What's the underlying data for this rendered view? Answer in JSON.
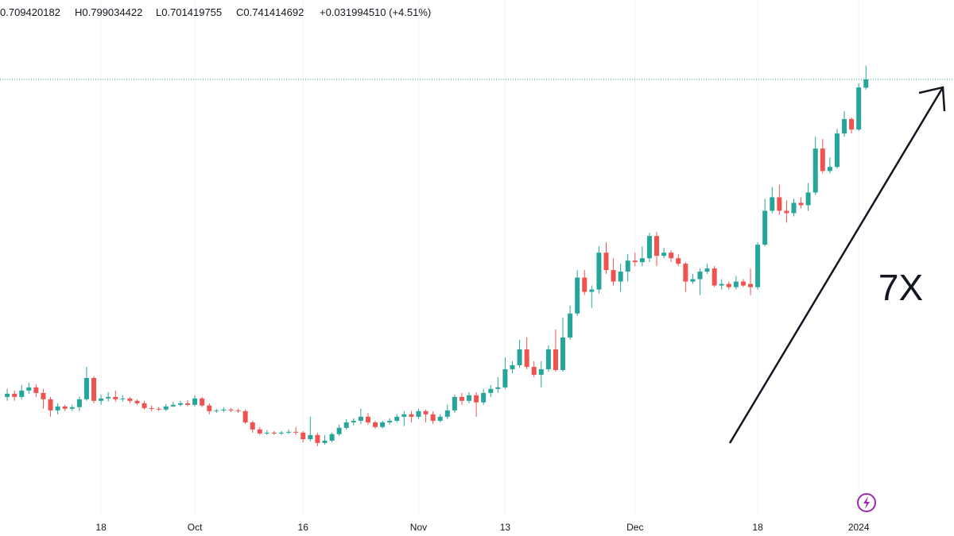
{
  "header": {
    "open": "0.709420182",
    "high": "H0.799034422",
    "low": "L0.701419755",
    "close": "C0.741414692",
    "change": "+0.031994510 (+4.51%)"
  },
  "chart_data": {
    "type": "candlestick",
    "log_scale": true,
    "up_color": "#26a69a",
    "down_color": "#ef5350",
    "price_line_color": "#26a69a",
    "annotation": "7X",
    "ylim": [
      0.0723,
      1.0
    ],
    "xlim": [
      -1,
      131.2
    ],
    "xticks": [
      {
        "value": 13,
        "label": "18"
      },
      {
        "value": 26,
        "label": "Oct"
      },
      {
        "value": 41,
        "label": "16"
      },
      {
        "value": 57,
        "label": "Nov"
      },
      {
        "value": 69,
        "label": "13"
      },
      {
        "value": 87,
        "label": "Dec"
      },
      {
        "value": 104,
        "label": "18"
      },
      {
        "value": 118,
        "label": "2024"
      }
    ],
    "ohlc": [
      [
        0.1344,
        0.1403,
        0.1316,
        0.1367
      ],
      [
        0.1367,
        0.1391,
        0.1316,
        0.1344
      ],
      [
        0.1344,
        0.1432,
        0.1327,
        0.1391
      ],
      [
        0.1391,
        0.1451,
        0.1367,
        0.1415
      ],
      [
        0.1415,
        0.1438,
        0.1344,
        0.1373
      ],
      [
        0.1373,
        0.1403,
        0.1261,
        0.1327
      ],
      [
        0.1327,
        0.1344,
        0.1208,
        0.125
      ],
      [
        0.125,
        0.1299,
        0.1224,
        0.1277
      ],
      [
        0.1277,
        0.1288,
        0.1245,
        0.1261
      ],
      [
        0.1261,
        0.1288,
        0.1245,
        0.1272
      ],
      [
        0.1272,
        0.1344,
        0.1245,
        0.1327
      ],
      [
        0.1327,
        0.158,
        0.1316,
        0.1488
      ],
      [
        0.1488,
        0.1501,
        0.1299,
        0.1316
      ],
      [
        0.1316,
        0.1361,
        0.1288,
        0.1333
      ],
      [
        0.1333,
        0.1379,
        0.131,
        0.1344
      ],
      [
        0.1344,
        0.1391,
        0.131,
        0.1327
      ],
      [
        0.1327,
        0.1356,
        0.131,
        0.1333
      ],
      [
        0.1333,
        0.1344,
        0.1299,
        0.1316
      ],
      [
        0.1316,
        0.1327,
        0.1288,
        0.1299
      ],
      [
        0.1299,
        0.1316,
        0.1256,
        0.1266
      ],
      [
        0.1266,
        0.1283,
        0.1245,
        0.1261
      ],
      [
        0.1261,
        0.1272,
        0.1245,
        0.1256
      ],
      [
        0.1256,
        0.1294,
        0.1245,
        0.1277
      ],
      [
        0.1277,
        0.131,
        0.1272,
        0.1288
      ],
      [
        0.1288,
        0.1316,
        0.1277,
        0.1299
      ],
      [
        0.1299,
        0.1321,
        0.1277,
        0.1288
      ],
      [
        0.1288,
        0.1356,
        0.1277,
        0.1333
      ],
      [
        0.1333,
        0.1344,
        0.1272,
        0.1283
      ],
      [
        0.1283,
        0.1299,
        0.1224,
        0.1245
      ],
      [
        0.1245,
        0.1261,
        0.1234,
        0.125
      ],
      [
        0.125,
        0.1272,
        0.1239,
        0.1256
      ],
      [
        0.1256,
        0.1266,
        0.1239,
        0.125
      ],
      [
        0.125,
        0.1261,
        0.1234,
        0.1245
      ],
      [
        0.1245,
        0.1256,
        0.1162,
        0.1172
      ],
      [
        0.1172,
        0.1182,
        0.1109,
        0.1128
      ],
      [
        0.1128,
        0.1143,
        0.1095,
        0.1104
      ],
      [
        0.1104,
        0.1124,
        0.1095,
        0.1109
      ],
      [
        0.1109,
        0.1119,
        0.1095,
        0.1104
      ],
      [
        0.1104,
        0.1119,
        0.1095,
        0.1109
      ],
      [
        0.1109,
        0.1128,
        0.11,
        0.1114
      ],
      [
        0.1114,
        0.1143,
        0.1095,
        0.1109
      ],
      [
        0.1109,
        0.1119,
        0.1053,
        0.1071
      ],
      [
        0.1071,
        0.1208,
        0.1058,
        0.1095
      ],
      [
        0.1095,
        0.1109,
        0.1031,
        0.1049
      ],
      [
        0.1049,
        0.1095,
        0.104,
        0.1062
      ],
      [
        0.1062,
        0.1109,
        0.1053,
        0.11
      ],
      [
        0.11,
        0.1158,
        0.109,
        0.1138
      ],
      [
        0.1138,
        0.1193,
        0.1128,
        0.1172
      ],
      [
        0.1172,
        0.1198,
        0.1153,
        0.1182
      ],
      [
        0.1182,
        0.1261,
        0.1162,
        0.1208
      ],
      [
        0.1208,
        0.1234,
        0.1158,
        0.1172
      ],
      [
        0.1172,
        0.1182,
        0.1133,
        0.1143
      ],
      [
        0.1143,
        0.1182,
        0.1133,
        0.1172
      ],
      [
        0.1172,
        0.1198,
        0.1158,
        0.1182
      ],
      [
        0.1182,
        0.1224,
        0.1172,
        0.1208
      ],
      [
        0.1208,
        0.1245,
        0.1148,
        0.1224
      ],
      [
        0.1224,
        0.1245,
        0.1172,
        0.1208
      ],
      [
        0.1208,
        0.1261,
        0.1193,
        0.1245
      ],
      [
        0.1245,
        0.1256,
        0.1172,
        0.1224
      ],
      [
        0.1224,
        0.1245,
        0.1162,
        0.1182
      ],
      [
        0.1182,
        0.1224,
        0.1172,
        0.1208
      ],
      [
        0.1208,
        0.1288,
        0.1193,
        0.125
      ],
      [
        0.125,
        0.1361,
        0.1234,
        0.1344
      ],
      [
        0.1344,
        0.1373,
        0.1288,
        0.1316
      ],
      [
        0.1316,
        0.1379,
        0.1299,
        0.1356
      ],
      [
        0.1356,
        0.1379,
        0.1208,
        0.1305
      ],
      [
        0.1305,
        0.1403,
        0.1288,
        0.1373
      ],
      [
        0.1373,
        0.1432,
        0.1344,
        0.1403
      ],
      [
        0.1403,
        0.1495,
        0.1373,
        0.1415
      ],
      [
        0.1415,
        0.1663,
        0.1403,
        0.156
      ],
      [
        0.156,
        0.1629,
        0.1527,
        0.1594
      ],
      [
        0.1594,
        0.1827,
        0.1573,
        0.1736
      ],
      [
        0.1736,
        0.185,
        0.156,
        0.158
      ],
      [
        0.158,
        0.1629,
        0.1495,
        0.1514
      ],
      [
        0.1514,
        0.1629,
        0.1415,
        0.156
      ],
      [
        0.156,
        0.1773,
        0.154,
        0.1736
      ],
      [
        0.1736,
        0.1932,
        0.154,
        0.1553
      ],
      [
        0.1553,
        0.206,
        0.154,
        0.185
      ],
      [
        0.185,
        0.2197,
        0.1827,
        0.2105
      ],
      [
        0.2105,
        0.2659,
        0.2078,
        0.2554
      ],
      [
        0.2554,
        0.2659,
        0.2325,
        0.2365
      ],
      [
        0.2365,
        0.2447,
        0.2169,
        0.2395
      ],
      [
        0.2395,
        0.3022,
        0.2345,
        0.292
      ],
      [
        0.292,
        0.3087,
        0.2604,
        0.2659
      ],
      [
        0.2659,
        0.2834,
        0.2447,
        0.25
      ],
      [
        0.25,
        0.2751,
        0.2365,
        0.2637
      ],
      [
        0.2637,
        0.2895,
        0.25,
        0.2798
      ],
      [
        0.2798,
        0.292,
        0.2716,
        0.2775
      ],
      [
        0.2775,
        0.3022,
        0.2716,
        0.2834
      ],
      [
        0.2834,
        0.3249,
        0.2775,
        0.3194
      ],
      [
        0.3194,
        0.3263,
        0.2716,
        0.2871
      ],
      [
        0.2871,
        0.2996,
        0.2834,
        0.292
      ],
      [
        0.292,
        0.2958,
        0.2775,
        0.2834
      ],
      [
        0.2834,
        0.2895,
        0.2716,
        0.2751
      ],
      [
        0.2751,
        0.2775,
        0.2365,
        0.25
      ],
      [
        0.25,
        0.2604,
        0.2468,
        0.2532
      ],
      [
        0.2532,
        0.2682,
        0.2325,
        0.2637
      ],
      [
        0.2637,
        0.2751,
        0.2604,
        0.2682
      ],
      [
        0.2682,
        0.2716,
        0.2426,
        0.2447
      ],
      [
        0.2447,
        0.2532,
        0.2395,
        0.2468
      ],
      [
        0.2468,
        0.25,
        0.2395,
        0.2426
      ],
      [
        0.2426,
        0.2576,
        0.2395,
        0.25
      ],
      [
        0.25,
        0.2532,
        0.2426,
        0.2447
      ],
      [
        0.2468,
        0.2682,
        0.2325,
        0.2426
      ],
      [
        0.2426,
        0.3087,
        0.2395,
        0.3048
      ],
      [
        0.3048,
        0.39,
        0.3022,
        0.3658
      ],
      [
        0.3658,
        0.4158,
        0.3611,
        0.3934
      ],
      [
        0.3934,
        0.4212,
        0.358,
        0.3658
      ],
      [
        0.3658,
        0.3867,
        0.3432,
        0.3611
      ],
      [
        0.3611,
        0.39,
        0.355,
        0.3818
      ],
      [
        0.3818,
        0.3934,
        0.3705,
        0.377
      ],
      [
        0.377,
        0.4248,
        0.3658,
        0.4036
      ],
      [
        0.4036,
        0.5449,
        0.3984,
        0.5112
      ],
      [
        0.5112,
        0.538,
        0.4473,
        0.4531
      ],
      [
        0.4531,
        0.4876,
        0.4473,
        0.463
      ],
      [
        0.463,
        0.5687,
        0.459,
        0.5543
      ],
      [
        0.5543,
        0.6253,
        0.5449,
        0.5992
      ],
      [
        0.5992,
        0.6043,
        0.5543,
        0.5663
      ],
      [
        0.5663,
        0.7258,
        0.5615,
        0.7103
      ],
      [
        0.709420182,
        0.799034422,
        0.701419755,
        0.741414692
      ]
    ]
  }
}
